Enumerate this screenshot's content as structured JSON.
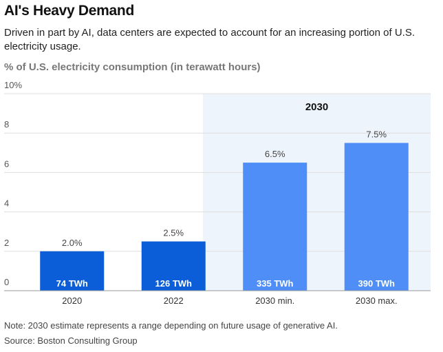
{
  "header": {
    "title": "AI's Heavy Demand",
    "subtitle": "Driven in part by AI, data centers are expected to account for an increasing portion of U.S. electricity usage."
  },
  "footer": {
    "note": "Note: 2030 estimate represents a range depending on future usage of generative AI.",
    "source": "Source: Boston Consulting Group"
  },
  "chart_data": {
    "type": "bar",
    "title": "AI's Heavy Demand",
    "ylabel": "% of U.S. electricity consumption (in terawatt hours)",
    "xlabel": "",
    "categories": [
      "2020",
      "2022",
      "2030 min.",
      "2030 max."
    ],
    "values": [
      2.0,
      2.5,
      6.5,
      7.5
    ],
    "value_labels": [
      "2.0%",
      "2.5%",
      "6.5%",
      "7.5%"
    ],
    "inner_labels": [
      "74 TWh",
      "126 TWh",
      "335 TWh",
      "390 TWh"
    ],
    "ylim": [
      0,
      10
    ],
    "yticks": [
      0,
      2,
      4,
      6,
      8,
      10
    ],
    "ytick_labels": [
      "0",
      "2",
      "4",
      "6",
      "8",
      "10%"
    ],
    "highlight": {
      "label": "2030",
      "categories": [
        "2030 min.",
        "2030 max."
      ],
      "color": "#eef4fc"
    },
    "colors": {
      "historical": "#0b5ed7",
      "projected": "#4f8ef7",
      "grid": "#dddddd"
    },
    "grid": true,
    "legend": "none"
  }
}
